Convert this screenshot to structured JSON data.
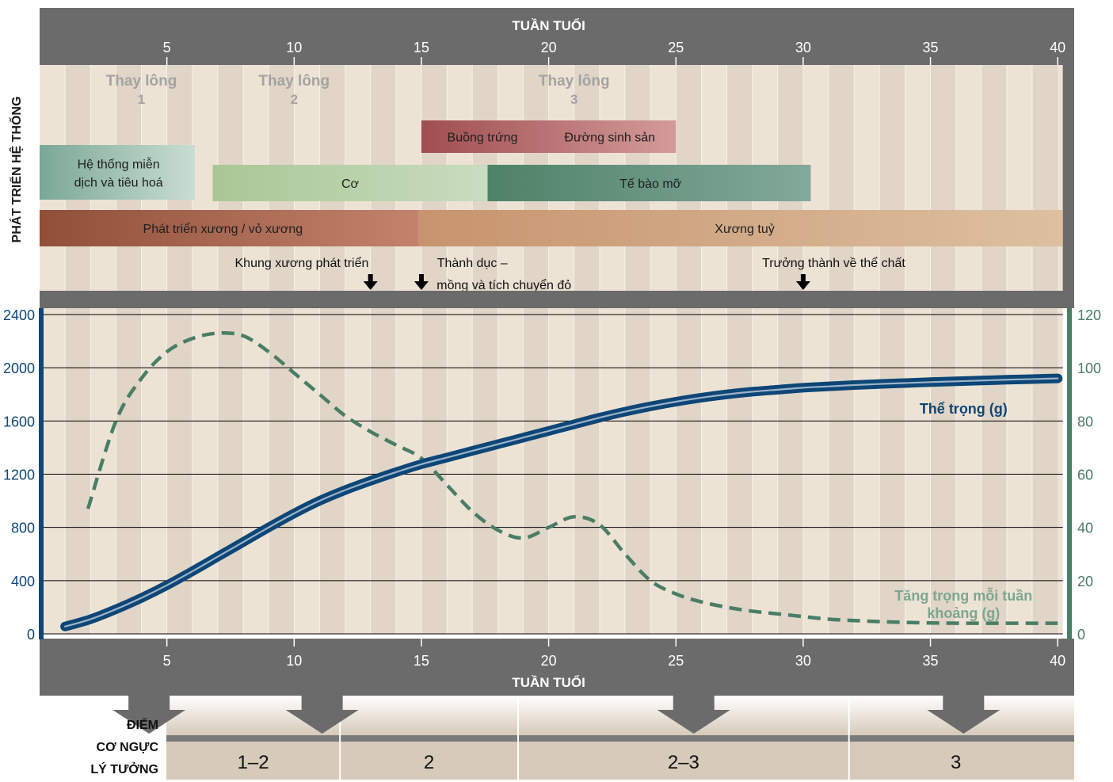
{
  "chart_data": {
    "type": "line",
    "top_axis_title": "TUẦN TUỔI",
    "bottom_axis_title": "TUẦN TUỔI",
    "xlim": [
      0,
      40
    ],
    "x_ticks": [
      5,
      10,
      15,
      20,
      25,
      30,
      35,
      40
    ],
    "y_left_ticks": [
      0,
      400,
      800,
      1200,
      1600,
      2000,
      2400
    ],
    "y_right_ticks": [
      0,
      20,
      40,
      60,
      80,
      100,
      120
    ],
    "y_left_lim": [
      0,
      2400
    ],
    "y_right_lim": [
      0,
      120
    ],
    "grid": "horizontal-at-left-ticks",
    "section_title": "PHÁT TRIỂN HỆ THỐNG",
    "molts": [
      {
        "line1": "Thay lông",
        "line2": "1",
        "x": 4
      },
      {
        "line1": "Thay lông",
        "line2": "2",
        "x": 10
      },
      {
        "line1": "Thay lông",
        "line2": "3",
        "x": 21
      }
    ],
    "bars": [
      {
        "row": 1,
        "x0": 15,
        "x1": 25,
        "labels": [
          {
            "text": "Buồng trứng",
            "x": 17.4
          },
          {
            "text": "Đường sinh sản",
            "x": 22.4
          }
        ],
        "color0": "#a04d50",
        "color1": "#d49b9a"
      },
      {
        "row": 2,
        "x0": 0,
        "x1": 6.1,
        "labels": [
          {
            "text": "Hệ thống miễn",
            "x": 3.1
          },
          {
            "text": "dịch và tiêu hoá",
            "x": 3.1
          }
        ],
        "color0": "#7aa896",
        "color1": "#c9ddd3"
      },
      {
        "row": 3,
        "x0": 6.8,
        "x1": 17.6,
        "labels": [
          {
            "text": "Cơ",
            "x": 12.2
          }
        ],
        "color0": "#a9c795",
        "color1": "#c9dcc0"
      },
      {
        "row": 3,
        "x0": 17.6,
        "x1": 30.3,
        "labels": [
          {
            "text": "Tế bào mỡ",
            "x": 24
          }
        ],
        "color0": "#4e8268",
        "color1": "#83a99a"
      },
      {
        "row": 4,
        "x0": 0,
        "x1": 14.9,
        "labels": [
          {
            "text": "Phát triển xương / vỏ xương",
            "x": 7.2
          }
        ],
        "color0": "#8f4f38",
        "color1": "#c2826c"
      },
      {
        "row": 4,
        "x0": 14.9,
        "x1": 40.2,
        "labels": [
          {
            "text": "Xương tuỷ",
            "x": 27.7
          }
        ],
        "color0": "#c7946e",
        "color1": "#ddc0a0"
      }
    ],
    "milestones": [
      {
        "text": "Khung xương phát triển",
        "text_x": 10.3,
        "arrow_x": 13
      },
      {
        "text": "Thành dục –",
        "text2": "mồng và tích chuyển đỏ",
        "text_x": 17,
        "arrow_x": 15
      },
      {
        "text": "Trưởng thành về thể chất",
        "text_x": 31.2,
        "arrow_x": 30
      }
    ],
    "series": [
      {
        "name": "Thể trọng (g)",
        "axis": "left",
        "color": "#0d4677",
        "x": [
          1,
          2,
          3,
          4,
          5,
          6,
          7,
          8,
          9,
          10,
          11,
          12,
          13,
          14,
          15,
          16,
          17,
          18,
          19,
          20,
          21,
          22,
          23,
          24,
          25,
          26,
          27,
          28,
          29,
          30,
          31,
          32,
          33,
          34,
          35,
          36,
          37,
          38,
          39,
          40
        ],
        "y": [
          55,
          110,
          185,
          270,
          365,
          470,
          580,
          690,
          800,
          905,
          1000,
          1080,
          1150,
          1215,
          1275,
          1325,
          1375,
          1425,
          1475,
          1525,
          1575,
          1625,
          1670,
          1710,
          1745,
          1775,
          1800,
          1820,
          1835,
          1850,
          1860,
          1870,
          1878,
          1885,
          1892,
          1898,
          1904,
          1910,
          1915,
          1920
        ]
      },
      {
        "name": "Tăng trọng mỗi tuần khoảng (g)",
        "axis": "right",
        "color": "#4a7d66",
        "dashed": true,
        "x": [
          1.9,
          3,
          4,
          5,
          6,
          7,
          8,
          9,
          10,
          11,
          12,
          13,
          14,
          15,
          16,
          17,
          18,
          19,
          20,
          21,
          22,
          23,
          24,
          25,
          26,
          27,
          28,
          29,
          30,
          31,
          32,
          33,
          34,
          35,
          36,
          37,
          38,
          39,
          40
        ],
        "y": [
          47,
          80,
          96,
          106,
          111,
          113,
          112,
          106,
          98,
          90,
          82,
          76,
          71,
          66,
          56,
          46,
          39,
          36,
          40,
          44,
          41,
          30,
          20,
          15,
          12,
          10,
          8.5,
          7.5,
          6.5,
          5.5,
          5,
          4.6,
          4.3,
          4.1,
          4,
          4,
          4,
          4,
          4
        ]
      }
    ],
    "bottom_section": {
      "label_lines": [
        "ĐIỂM",
        "CƠ NGỰC",
        "LÝ TƯỞNG"
      ],
      "scores": [
        {
          "text": "1–2",
          "x0": 0,
          "x1": 11.8
        },
        {
          "text": "2",
          "x0": 11.8,
          "x1": 18.8
        },
        {
          "text": "2–3",
          "x0": 18.8,
          "x1": 31.8
        },
        {
          "text": "3",
          "x0": 31.8,
          "x1": 40.2
        }
      ],
      "arrow_x": [
        4.3,
        11.1,
        25.7,
        36.3
      ]
    },
    "colors": {
      "frame": "#6b6b6b",
      "bg_light": "#ede3d6",
      "bg_dark": "#d6cab9",
      "left_axis": "#0d4677",
      "right_axis": "#4a7d66"
    }
  }
}
